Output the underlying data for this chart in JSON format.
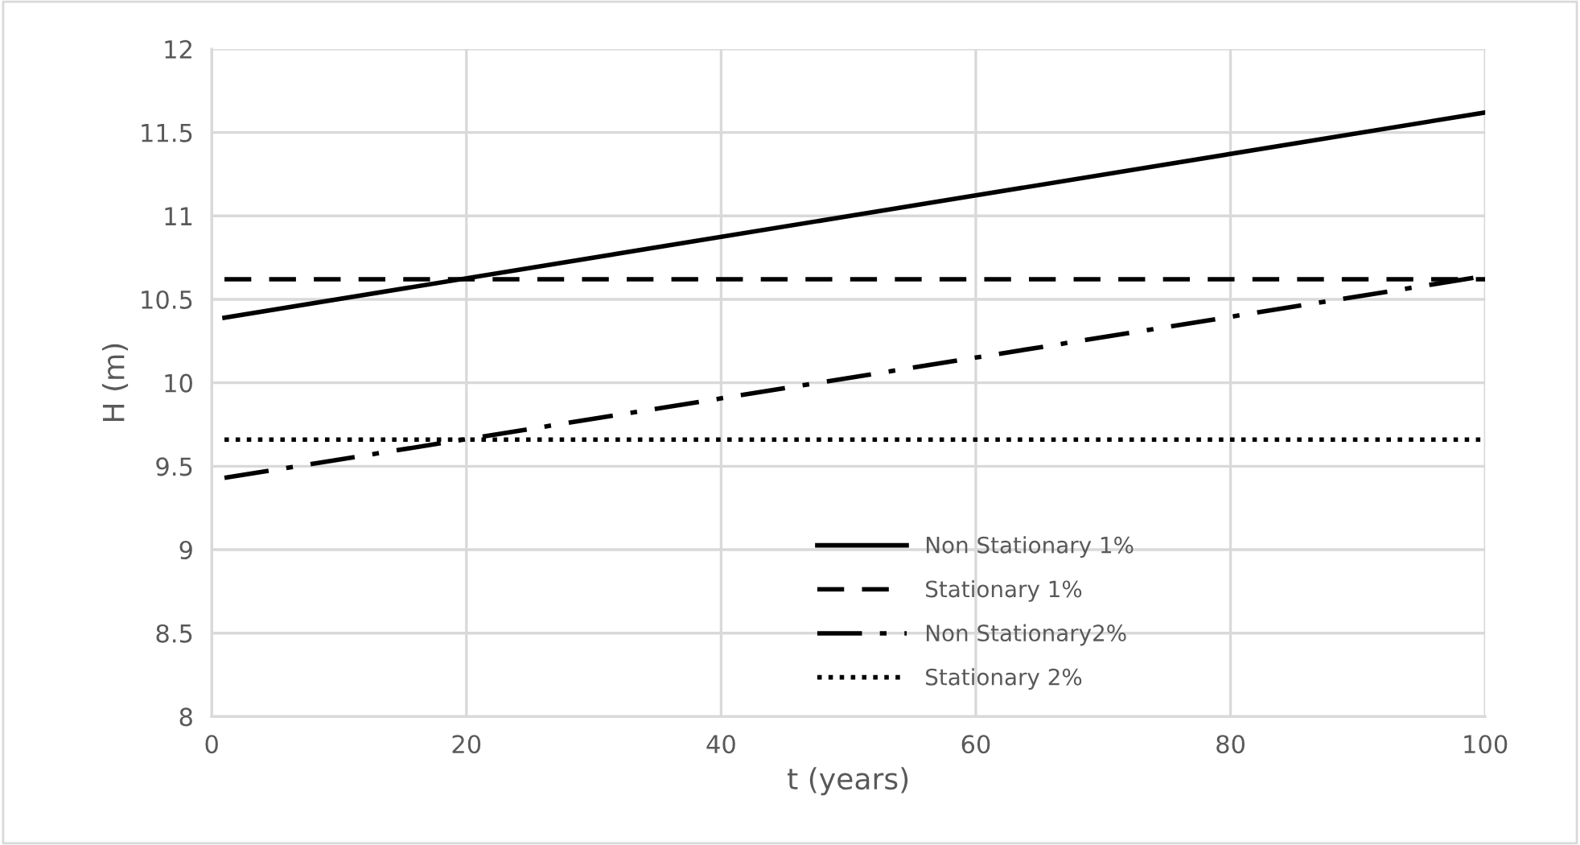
{
  "chart_data": {
    "type": "line",
    "xlabel": "t (years)",
    "ylabel": "H (m)",
    "x": [
      1,
      100
    ],
    "series": [
      {
        "name": "Non Stationary 1%",
        "color": "#000000",
        "line_style": "solid",
        "values": [
          10.39,
          11.62
        ]
      },
      {
        "name": "Stationary 1%",
        "color": "#000000",
        "line_style": "dashed",
        "values": [
          10.62,
          10.62
        ]
      },
      {
        "name": "Non Stationary2%",
        "color": "#000000",
        "line_style": "dashdot",
        "values": [
          9.43,
          10.64
        ]
      },
      {
        "name": "Stationary 2%",
        "color": "#000000",
        "line_style": "dotted",
        "values": [
          9.66,
          9.66
        ]
      }
    ],
    "xlim": [
      0,
      100
    ],
    "xticks": [
      0,
      20,
      40,
      60,
      80,
      100
    ],
    "ylim": [
      8,
      12
    ],
    "yticks": [
      8,
      8.5,
      9,
      9.5,
      10,
      10.5,
      11,
      11.5,
      12
    ],
    "grid": true,
    "legend": "bottom",
    "marker": "none"
  }
}
